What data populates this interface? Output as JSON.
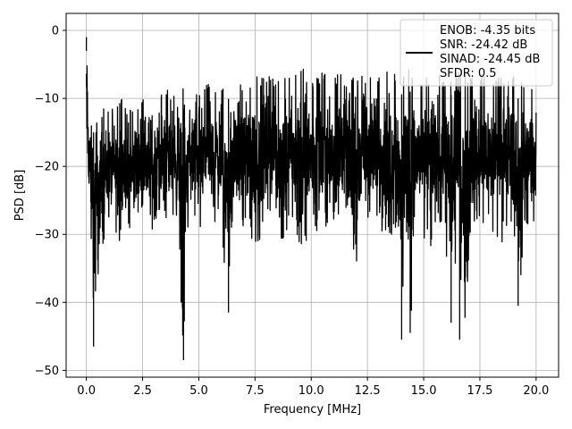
{
  "chart_data": {
    "type": "line",
    "title": "",
    "xlabel": "Frequency [MHz]",
    "ylabel": "PSD [dB]",
    "xlim": [
      -0.9,
      21.0
    ],
    "ylim": [
      -51,
      2.5
    ],
    "x_ticks": [
      0.0,
      2.5,
      5.0,
      7.5,
      10.0,
      12.5,
      15.0,
      17.5,
      20.0
    ],
    "x_tick_labels": [
      "0.0",
      "2.5",
      "5.0",
      "7.5",
      "10.0",
      "12.5",
      "15.0",
      "17.5",
      "20.0"
    ],
    "y_ticks": [
      0,
      -10,
      -20,
      -30,
      -40,
      -50
    ],
    "y_tick_labels": [
      "0",
      "−10",
      "−20",
      "−30",
      "−40",
      "−50"
    ],
    "grid": true,
    "legend_position": "top-right",
    "legend_entries": [
      "ENOB: -4.35 bits",
      "SNR: -24.42 dB",
      "SINAD: -24.45 dB",
      "SFDR: 0.5"
    ],
    "series": [
      {
        "color": "#000000",
        "x": [
          0.0,
          0.04,
          0.08,
          0.12,
          0.16,
          0.2,
          0.26,
          0.32,
          0.38,
          0.45,
          0.5,
          0.6,
          0.7,
          0.8,
          1.0,
          1.2,
          1.4,
          1.6,
          1.8,
          2.0,
          2.3,
          2.6,
          2.9,
          3.2,
          3.5,
          3.8,
          4.1,
          4.3,
          4.5,
          4.8,
          5.1,
          5.4,
          5.7,
          6.0,
          6.3,
          6.6,
          6.9,
          7.2,
          7.5,
          7.8,
          8.1,
          8.4,
          8.7,
          9.0,
          9.3,
          9.6,
          9.9,
          10.2,
          10.5,
          10.8,
          11.1,
          11.4,
          11.7,
          12.0,
          12.3,
          12.6,
          12.9,
          13.2,
          13.5,
          13.8,
          14.0,
          14.2,
          14.4,
          14.7,
          15.0,
          15.3,
          15.6,
          15.9,
          16.2,
          16.5,
          16.8,
          17.1,
          17.4,
          17.7,
          18.0,
          18.3,
          18.6,
          18.9,
          19.2,
          19.5,
          19.8,
          20.0
        ],
        "y_high": [
          0.0,
          -2.5,
          -7.0,
          -9.5,
          -10.0,
          -11.0,
          -10.5,
          -12.0,
          -11.5,
          -12.5,
          -13.0,
          -12.0,
          -11.5,
          -11.0,
          -11.5,
          -11.0,
          -10.5,
          -10.0,
          -10.5,
          -11.0,
          -9.5,
          -9.5,
          -8.5,
          -9.0,
          -8.5,
          -9.0,
          -8.0,
          -8.5,
          -9.0,
          -8.0,
          -8.5,
          -7.5,
          -8.5,
          -7.5,
          -7.0,
          -8.0,
          -7.5,
          -7.0,
          -6.0,
          -7.0,
          -6.5,
          -7.0,
          -6.5,
          -7.0,
          -6.0,
          -5.5,
          -6.5,
          -7.0,
          -6.0,
          -7.0,
          -6.5,
          -6.0,
          -6.0,
          -7.0,
          -6.5,
          -6.0,
          -7.0,
          -6.5,
          -5.5,
          -6.5,
          -6.5,
          -5.5,
          -6.0,
          -7.0,
          -6.5,
          -6.0,
          -6.5,
          -7.0,
          -6.5,
          -6.0,
          -6.0,
          -6.5,
          -7.0,
          -6.0,
          -7.5,
          -7.0,
          -6.5,
          -6.0,
          -7.0,
          -7.5,
          -7.5,
          -8.5
        ],
        "y_low": [
          -18.0,
          -23.0,
          -30.0,
          -27.0,
          -28.0,
          -39.5,
          -31.0,
          -46.5,
          -41.5,
          -36.0,
          -38.0,
          -32.0,
          -35.0,
          -30.0,
          -31.0,
          -29.0,
          -33.5,
          -28.0,
          -30.0,
          -31.0,
          -28.0,
          -27.5,
          -32.5,
          -28.0,
          -29.0,
          -27.5,
          -31.5,
          -48.5,
          -29.0,
          -28.0,
          -30.0,
          -27.0,
          -30.0,
          -28.5,
          -41.5,
          -28.0,
          -29.5,
          -28.0,
          -33.5,
          -30.0,
          -28.5,
          -30.0,
          -33.0,
          -28.0,
          -29.0,
          -34.5,
          -28.5,
          -30.0,
          -31.0,
          -28.0,
          -29.5,
          -28.0,
          -30.5,
          -35.5,
          -29.0,
          -30.0,
          -28.5,
          -30.0,
          -31.5,
          -29.0,
          -45.5,
          -30.0,
          -44.5,
          -30.0,
          -30.5,
          -32.0,
          -29.0,
          -30.5,
          -43.0,
          -31.0,
          -45.5,
          -30.0,
          -32.0,
          -29.5,
          -31.0,
          -30.5,
          -32.0,
          -29.0,
          -40.5,
          -30.0,
          -31.5,
          -27.5
        ]
      }
    ],
    "spikes": [
      {
        "x": 0.0,
        "y": -1.0
      },
      {
        "x": 0.32,
        "y": -46.5
      },
      {
        "x": 4.32,
        "y": -48.5
      },
      {
        "x": 6.32,
        "y": -41.5
      },
      {
        "x": 14.02,
        "y": -45.5
      },
      {
        "x": 14.4,
        "y": -44.5
      },
      {
        "x": 16.22,
        "y": -43.0
      },
      {
        "x": 16.6,
        "y": -45.5
      },
      {
        "x": 19.2,
        "y": -40.5
      }
    ]
  }
}
